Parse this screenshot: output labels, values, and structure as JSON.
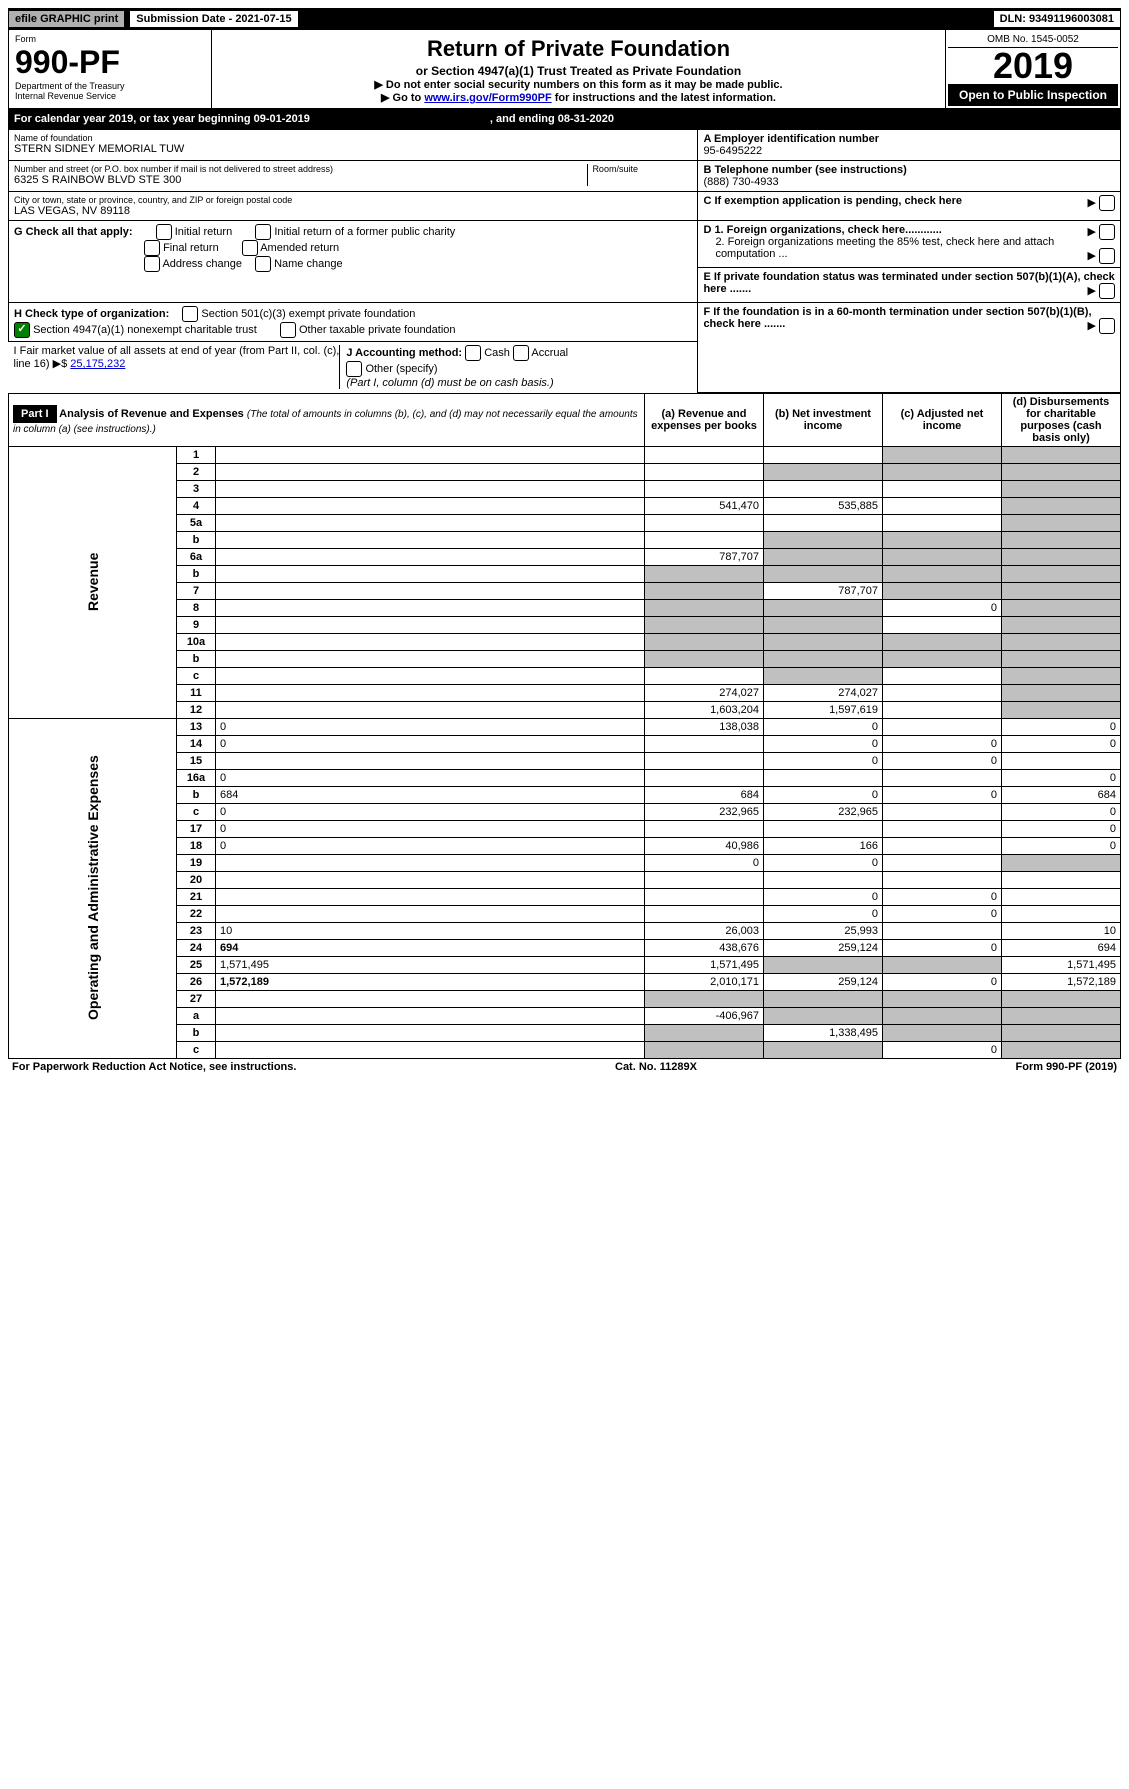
{
  "top": {
    "efile": "efile GRAPHIC print",
    "sub_label": "Submission Date - 2021-07-15",
    "dln": "DLN: 93491196003081"
  },
  "header": {
    "form_word": "Form",
    "form_no": "990-PF",
    "dept": "Department of the Treasury",
    "irs": "Internal Revenue Service",
    "title": "Return of Private Foundation",
    "subtitle": "or Section 4947(a)(1) Trust Treated as Private Foundation",
    "instr1": "▶ Do not enter social security numbers on this form as it may be made public.",
    "instr2a": "▶ Go to ",
    "instr2_link": "www.irs.gov/Form990PF",
    "instr2b": " for instructions and the latest information.",
    "omb": "OMB No. 1545-0052",
    "year": "2019",
    "open": "Open to Public Inspection"
  },
  "cal": {
    "a": "For calendar year 2019, or tax year beginning 09-01-2019",
    "b": ", and ending 08-31-2020"
  },
  "entity": {
    "name_lbl": "Name of foundation",
    "name": "STERN SIDNEY MEMORIAL TUW",
    "addr_lbl": "Number and street (or P.O. box number if mail is not delivered to street address)",
    "addr": "6325 S RAINBOW BLVD STE 300",
    "room_lbl": "Room/suite",
    "city_lbl": "City or town, state or province, country, and ZIP or foreign postal code",
    "city": "LAS VEGAS, NV  89118",
    "ein_lbl": "A Employer identification number",
    "ein": "95-6495222",
    "tel_lbl": "B Telephone number (see instructions)",
    "tel": "(888) 730-4933",
    "c_lbl": "C If exemption application is pending, check here",
    "d1": "D 1. Foreign organizations, check here............",
    "d2": "2. Foreign organizations meeting the 85% test, check here and attach computation ...",
    "e_lbl": "E  If private foundation status was terminated under section 507(b)(1)(A), check here .......",
    "f_lbl": "F  If the foundation is in a 60-month termination under section 507(b)(1)(B), check here .......",
    "g_lbl": "G Check all that apply:",
    "g_opts": [
      "Initial return",
      "Initial return of a former public charity",
      "Final return",
      "Amended return",
      "Address change",
      "Name change"
    ],
    "h_lbl": "H Check type of organization:",
    "h1": "Section 501(c)(3) exempt private foundation",
    "h2": "Section 4947(a)(1) nonexempt charitable trust",
    "h3": "Other taxable private foundation",
    "i_lbl": "I Fair market value of all assets at end of year (from Part II, col. (c), line 16) ▶$ ",
    "i_val": "25,175,232",
    "j_lbl": "J Accounting method:",
    "j_cash": "Cash",
    "j_accr": "Accrual",
    "j_other": "Other (specify)",
    "j_note": "(Part I, column (d) must be on cash basis.)"
  },
  "part1": {
    "label": "Part I",
    "title": "Analysis of Revenue and Expenses",
    "title_note": "(The total of amounts in columns (b), (c), and (d) may not necessarily equal the amounts in column (a) (see instructions).)",
    "col_a": "(a) Revenue and expenses per books",
    "col_b": "(b) Net investment income",
    "col_c": "(c) Adjusted net income",
    "col_d": "(d) Disbursements for charitable purposes (cash basis only)"
  },
  "side": {
    "rev": "Revenue",
    "exp": "Operating and Administrative Expenses"
  },
  "rows": [
    {
      "n": "1",
      "d": "",
      "a": "",
      "b": "",
      "c": "",
      "cg": true,
      "dg": true
    },
    {
      "n": "2",
      "d": "",
      "a": "",
      "b": "",
      "c": "",
      "bg": true,
      "cg": true,
      "dg": true
    },
    {
      "n": "3",
      "d": "",
      "a": "",
      "b": "",
      "c": "",
      "dg": true
    },
    {
      "n": "4",
      "d": "",
      "a": "541,470",
      "b": "535,885",
      "c": "",
      "dg": true
    },
    {
      "n": "5a",
      "d": "",
      "a": "",
      "b": "",
      "c": "",
      "dg": true
    },
    {
      "n": "b",
      "d": "",
      "a": "",
      "b": "",
      "c": "",
      "bg": true,
      "cg": true,
      "dg": true
    },
    {
      "n": "6a",
      "d": "",
      "a": "787,707",
      "b": "",
      "c": "",
      "bg": true,
      "cg": true,
      "dg": true
    },
    {
      "n": "b",
      "d": "",
      "a": "",
      "b": "",
      "c": "",
      "bg": true,
      "cg": true,
      "dg": true,
      "ag": true
    },
    {
      "n": "7",
      "d": "",
      "a": "",
      "b": "787,707",
      "c": "",
      "ag": true,
      "cg": true,
      "dg": true
    },
    {
      "n": "8",
      "d": "",
      "a": "",
      "b": "",
      "c": "0",
      "ag": true,
      "bg": true,
      "dg": true
    },
    {
      "n": "9",
      "d": "",
      "a": "",
      "b": "",
      "c": "",
      "ag": true,
      "bg": true,
      "dg": true
    },
    {
      "n": "10a",
      "d": "",
      "a": "",
      "b": "",
      "c": "",
      "ag": true,
      "bg": true,
      "cg": true,
      "dg": true
    },
    {
      "n": "b",
      "d": "",
      "a": "",
      "b": "",
      "c": "",
      "ag": true,
      "bg": true,
      "cg": true,
      "dg": true
    },
    {
      "n": "c",
      "d": "",
      "a": "",
      "b": "",
      "c": "",
      "bg": true,
      "dg": true
    },
    {
      "n": "11",
      "d": "",
      "a": "274,027",
      "b": "274,027",
      "c": "",
      "dg": true
    },
    {
      "n": "12",
      "d": "",
      "a": "1,603,204",
      "b": "1,597,619",
      "c": "",
      "dg": true,
      "bold": true
    },
    {
      "n": "13",
      "d": "0",
      "a": "138,038",
      "b": "0",
      "c": ""
    },
    {
      "n": "14",
      "d": "0",
      "a": "",
      "b": "0",
      "c": "0"
    },
    {
      "n": "15",
      "d": "",
      "a": "",
      "b": "0",
      "c": "0"
    },
    {
      "n": "16a",
      "d": "0",
      "a": "",
      "b": "",
      "c": ""
    },
    {
      "n": "b",
      "d": "684",
      "a": "684",
      "b": "0",
      "c": "0"
    },
    {
      "n": "c",
      "d": "0",
      "a": "232,965",
      "b": "232,965",
      "c": ""
    },
    {
      "n": "17",
      "d": "0",
      "a": "",
      "b": "",
      "c": ""
    },
    {
      "n": "18",
      "d": "0",
      "a": "40,986",
      "b": "166",
      "c": ""
    },
    {
      "n": "19",
      "d": "",
      "a": "0",
      "b": "0",
      "c": "",
      "dg": true
    },
    {
      "n": "20",
      "d": "",
      "a": "",
      "b": "",
      "c": ""
    },
    {
      "n": "21",
      "d": "",
      "a": "",
      "b": "0",
      "c": "0"
    },
    {
      "n": "22",
      "d": "",
      "a": "",
      "b": "0",
      "c": "0"
    },
    {
      "n": "23",
      "d": "10",
      "a": "26,003",
      "b": "25,993",
      "c": ""
    },
    {
      "n": "24",
      "d": "694",
      "a": "438,676",
      "b": "259,124",
      "c": "0",
      "bold": true
    },
    {
      "n": "25",
      "d": "1,571,495",
      "a": "1,571,495",
      "b": "",
      "c": "",
      "bg": true,
      "cg": true
    },
    {
      "n": "26",
      "d": "1,572,189",
      "a": "2,010,171",
      "b": "259,124",
      "c": "0",
      "bold": true
    },
    {
      "n": "27",
      "d": "",
      "a": "",
      "b": "",
      "c": "",
      "ag": true,
      "bg": true,
      "cg": true,
      "dg": true
    },
    {
      "n": "a",
      "d": "",
      "a": "-406,967",
      "b": "",
      "c": "",
      "bg": true,
      "cg": true,
      "dg": true,
      "bold": true
    },
    {
      "n": "b",
      "d": "",
      "a": "",
      "b": "1,338,495",
      "c": "",
      "ag": true,
      "cg": true,
      "dg": true,
      "bold": true
    },
    {
      "n": "c",
      "d": "",
      "a": "",
      "b": "",
      "c": "0",
      "ag": true,
      "bg": true,
      "dg": true,
      "bold": true
    }
  ],
  "footer": {
    "left": "For Paperwork Reduction Act Notice, see instructions.",
    "mid": "Cat. No. 11289X",
    "right": "Form 990-PF (2019)"
  }
}
